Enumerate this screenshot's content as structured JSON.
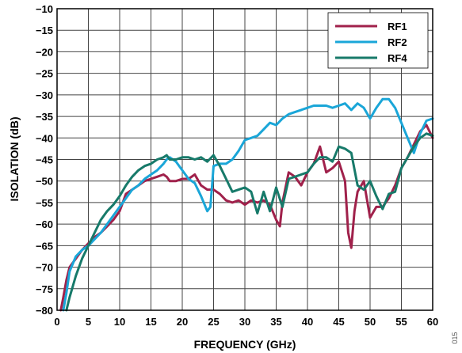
{
  "chart_data": {
    "type": "line",
    "xlabel": "FREQUENCY (GHz)",
    "ylabel": "ISOLATION (dB)",
    "xlim": [
      0,
      60
    ],
    "ylim": [
      -80,
      -10
    ],
    "xticks": [
      0,
      5,
      10,
      15,
      20,
      25,
      30,
      35,
      40,
      45,
      50,
      55,
      60
    ],
    "yticks": [
      -10,
      -15,
      -20,
      -25,
      -30,
      -35,
      -40,
      -45,
      -50,
      -55,
      -60,
      -65,
      -70,
      -75,
      -80
    ],
    "x_tick_labels": [
      "0",
      "5",
      "10",
      "15",
      "20",
      "25",
      "30",
      "35",
      "40",
      "45",
      "50",
      "55",
      "60"
    ],
    "y_tick_labels": [
      "−10",
      "−15",
      "−20",
      "−25",
      "−30",
      "−35",
      "−40",
      "−45",
      "−50",
      "−55",
      "−60",
      "−65",
      "−70",
      "−75",
      "−80"
    ],
    "grid": true,
    "legend": "top-right",
    "figure_id": "015",
    "series": [
      {
        "name": "RF1",
        "color": "#a0214b",
        "x": [
          0.6,
          1,
          1.5,
          2,
          3,
          4,
          5,
          6,
          7,
          8,
          9,
          10,
          11,
          12,
          13,
          14,
          15,
          16,
          17,
          17.5,
          18,
          19,
          20,
          21,
          22,
          23,
          24,
          25,
          26,
          27,
          28,
          29,
          30,
          31,
          32,
          33,
          34,
          35,
          35.6,
          36,
          37,
          38,
          39,
          40,
          41,
          42,
          43,
          44,
          45,
          46,
          46.5,
          47,
          47.5,
          48,
          49,
          50,
          51,
          52,
          53,
          54,
          55,
          56,
          57,
          58,
          59,
          60
        ],
        "y": [
          -80,
          -77,
          -73,
          -70,
          -68,
          -66,
          -64.5,
          -63,
          -62,
          -60.5,
          -59,
          -57,
          -53,
          -52,
          -51,
          -50,
          -49.5,
          -49,
          -48.5,
          -49,
          -50,
          -50,
          -49.5,
          -49.5,
          -48.5,
          -51,
          -52,
          -52,
          -53,
          -54.5,
          -55,
          -54.5,
          -55.5,
          -54.5,
          -55,
          -54.5,
          -55.5,
          -59,
          -60.5,
          -55,
          -48,
          -49,
          -51,
          -48,
          -46,
          -42,
          -48,
          -47,
          -45.5,
          -50,
          -62,
          -65.5,
          -57,
          -52.5,
          -50,
          -58.5,
          -56,
          -56,
          -54,
          -51,
          -47,
          -44.5,
          -41.5,
          -38.5,
          -37,
          -40
        ]
      },
      {
        "name": "RF2",
        "color": "#1aa6d8",
        "x": [
          1,
          1.5,
          2,
          3,
          4,
          5,
          6,
          7,
          8,
          9,
          10,
          11,
          12,
          13,
          14,
          15,
          16,
          17,
          17.5,
          18,
          19,
          20,
          21,
          22,
          23,
          24,
          24.5,
          25,
          26,
          27,
          28,
          29,
          30,
          31,
          32,
          33,
          34,
          35,
          36,
          37,
          38,
          39,
          40,
          41,
          42,
          43,
          44,
          45,
          46,
          47,
          48,
          49,
          50,
          51,
          52,
          53,
          54,
          55,
          56,
          57,
          58,
          59,
          60
        ],
        "y": [
          -80,
          -76,
          -71,
          -67.5,
          -66,
          -65,
          -63.5,
          -62,
          -60,
          -58,
          -56,
          -54,
          -52,
          -51,
          -49.5,
          -48.5,
          -47.5,
          -46,
          -45,
          -44.5,
          -45.5,
          -47.5,
          -49.5,
          -50.5,
          -53.5,
          -57,
          -56,
          -46.5,
          -46,
          -46,
          -45,
          -43,
          -40.5,
          -40,
          -39.5,
          -38,
          -36.5,
          -37,
          -35.5,
          -34.5,
          -34,
          -33.5,
          -33,
          -32.5,
          -32.5,
          -32.5,
          -33,
          -32.5,
          -32,
          -33.5,
          -32,
          -33,
          -35.5,
          -33,
          -31,
          -31,
          -33,
          -36.5,
          -40,
          -43.5,
          -39,
          -36,
          -35.5
        ]
      },
      {
        "name": "RF4",
        "color": "#177a6a",
        "x": [
          1.5,
          2,
          3,
          4,
          5,
          6,
          7,
          8,
          9,
          10,
          11,
          12,
          13,
          14,
          15,
          16,
          17,
          17.5,
          18,
          19,
          20,
          21,
          22,
          23,
          24,
          25,
          26,
          27,
          28,
          29,
          30,
          31,
          32,
          33,
          34,
          35,
          36,
          37,
          38,
          39,
          40,
          41,
          42,
          43,
          44,
          45,
          46,
          47,
          48,
          49,
          50,
          51,
          52,
          53,
          54,
          55,
          56,
          57,
          58,
          59,
          60
        ],
        "y": [
          -80,
          -77,
          -72,
          -68,
          -65,
          -62,
          -59,
          -57,
          -55.5,
          -53.5,
          -51,
          -49,
          -47.5,
          -46.5,
          -46,
          -45,
          -44.5,
          -44,
          -45,
          -45,
          -44.5,
          -44.5,
          -45,
          -44.5,
          -45.5,
          -44,
          -46.5,
          -49.5,
          -52.5,
          -52,
          -51.5,
          -52.5,
          -57.5,
          -52.5,
          -57,
          -51.5,
          -56,
          -49.5,
          -49,
          -48.5,
          -48,
          -46,
          -44.5,
          -44.5,
          -45.5,
          -42,
          -42.5,
          -43.5,
          -51,
          -52,
          -50,
          -53.5,
          -56.5,
          -53,
          -52.5,
          -47,
          -44.5,
          -42,
          -40,
          -39,
          -39.5
        ]
      }
    ]
  }
}
